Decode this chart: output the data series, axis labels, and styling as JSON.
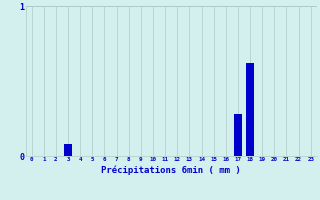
{
  "xlabel": "Précipitations 6min ( mm )",
  "categories": [
    0,
    1,
    2,
    3,
    4,
    5,
    6,
    7,
    8,
    9,
    10,
    11,
    12,
    13,
    14,
    15,
    16,
    17,
    18,
    19,
    20,
    21,
    22,
    23
  ],
  "values": [
    0,
    0,
    0,
    0.08,
    0,
    0,
    0,
    0,
    0,
    0,
    0,
    0,
    0,
    0,
    0,
    0,
    0,
    0.28,
    0.62,
    0,
    0,
    0,
    0,
    0
  ],
  "bar_color": "#0000cc",
  "bg_color": "#d4f0ee",
  "grid_color": "#b0c8c8",
  "label_color": "#0000cc",
  "ylim": [
    0,
    1.0
  ],
  "xlim": [
    -0.5,
    23.5
  ],
  "yticks": [
    0,
    1
  ],
  "xticks": [
    0,
    1,
    2,
    3,
    4,
    5,
    6,
    7,
    8,
    9,
    10,
    11,
    12,
    13,
    14,
    15,
    16,
    17,
    18,
    19,
    20,
    21,
    22,
    23
  ]
}
